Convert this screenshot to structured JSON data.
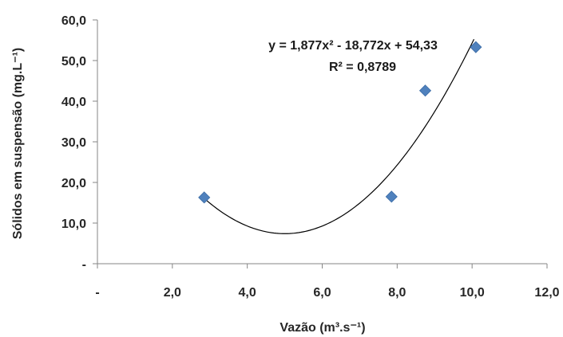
{
  "chart_data": {
    "type": "scatter",
    "xlabel": "Vazão (m³.s⁻¹)",
    "ylabel": "Sólidos em suspensão (mg.L⁻¹)",
    "xlim": [
      0,
      12
    ],
    "ylim": [
      0,
      60
    ],
    "x_ticks": [
      {
        "value": 0,
        "label": "-"
      },
      {
        "value": 2,
        "label": "2,0"
      },
      {
        "value": 4,
        "label": "4,0"
      },
      {
        "value": 6,
        "label": "6,0"
      },
      {
        "value": 8,
        "label": "8,0"
      },
      {
        "value": 10,
        "label": "10,0"
      },
      {
        "value": 12,
        "label": "12,0"
      }
    ],
    "y_ticks": [
      {
        "value": 0,
        "label": "-"
      },
      {
        "value": 10,
        "label": "10,0"
      },
      {
        "value": 20,
        "label": "20,0"
      },
      {
        "value": 30,
        "label": "30,0"
      },
      {
        "value": 40,
        "label": "40,0"
      },
      {
        "value": 50,
        "label": "50,0"
      },
      {
        "value": 60,
        "label": "60,0"
      }
    ],
    "grid": false,
    "legend": "none",
    "series": [
      {
        "marker": "diamond",
        "color": "#4F81BD",
        "points": [
          {
            "x": 2.85,
            "y": 16.3
          },
          {
            "x": 7.85,
            "y": 16.5
          },
          {
            "x": 8.75,
            "y": 42.6
          },
          {
            "x": 10.1,
            "y": 53.3
          }
        ]
      }
    ],
    "trendline": {
      "type": "polynomial",
      "order": 2,
      "coefficients": [
        1.877,
        -18.772,
        54.33
      ],
      "x_range": [
        2.85,
        10.05
      ],
      "color": "#000000"
    },
    "annotations": {
      "equation": "y = 1,877x² - 18,772x + 54,33",
      "r_squared": "R² = 0,8789"
    }
  }
}
